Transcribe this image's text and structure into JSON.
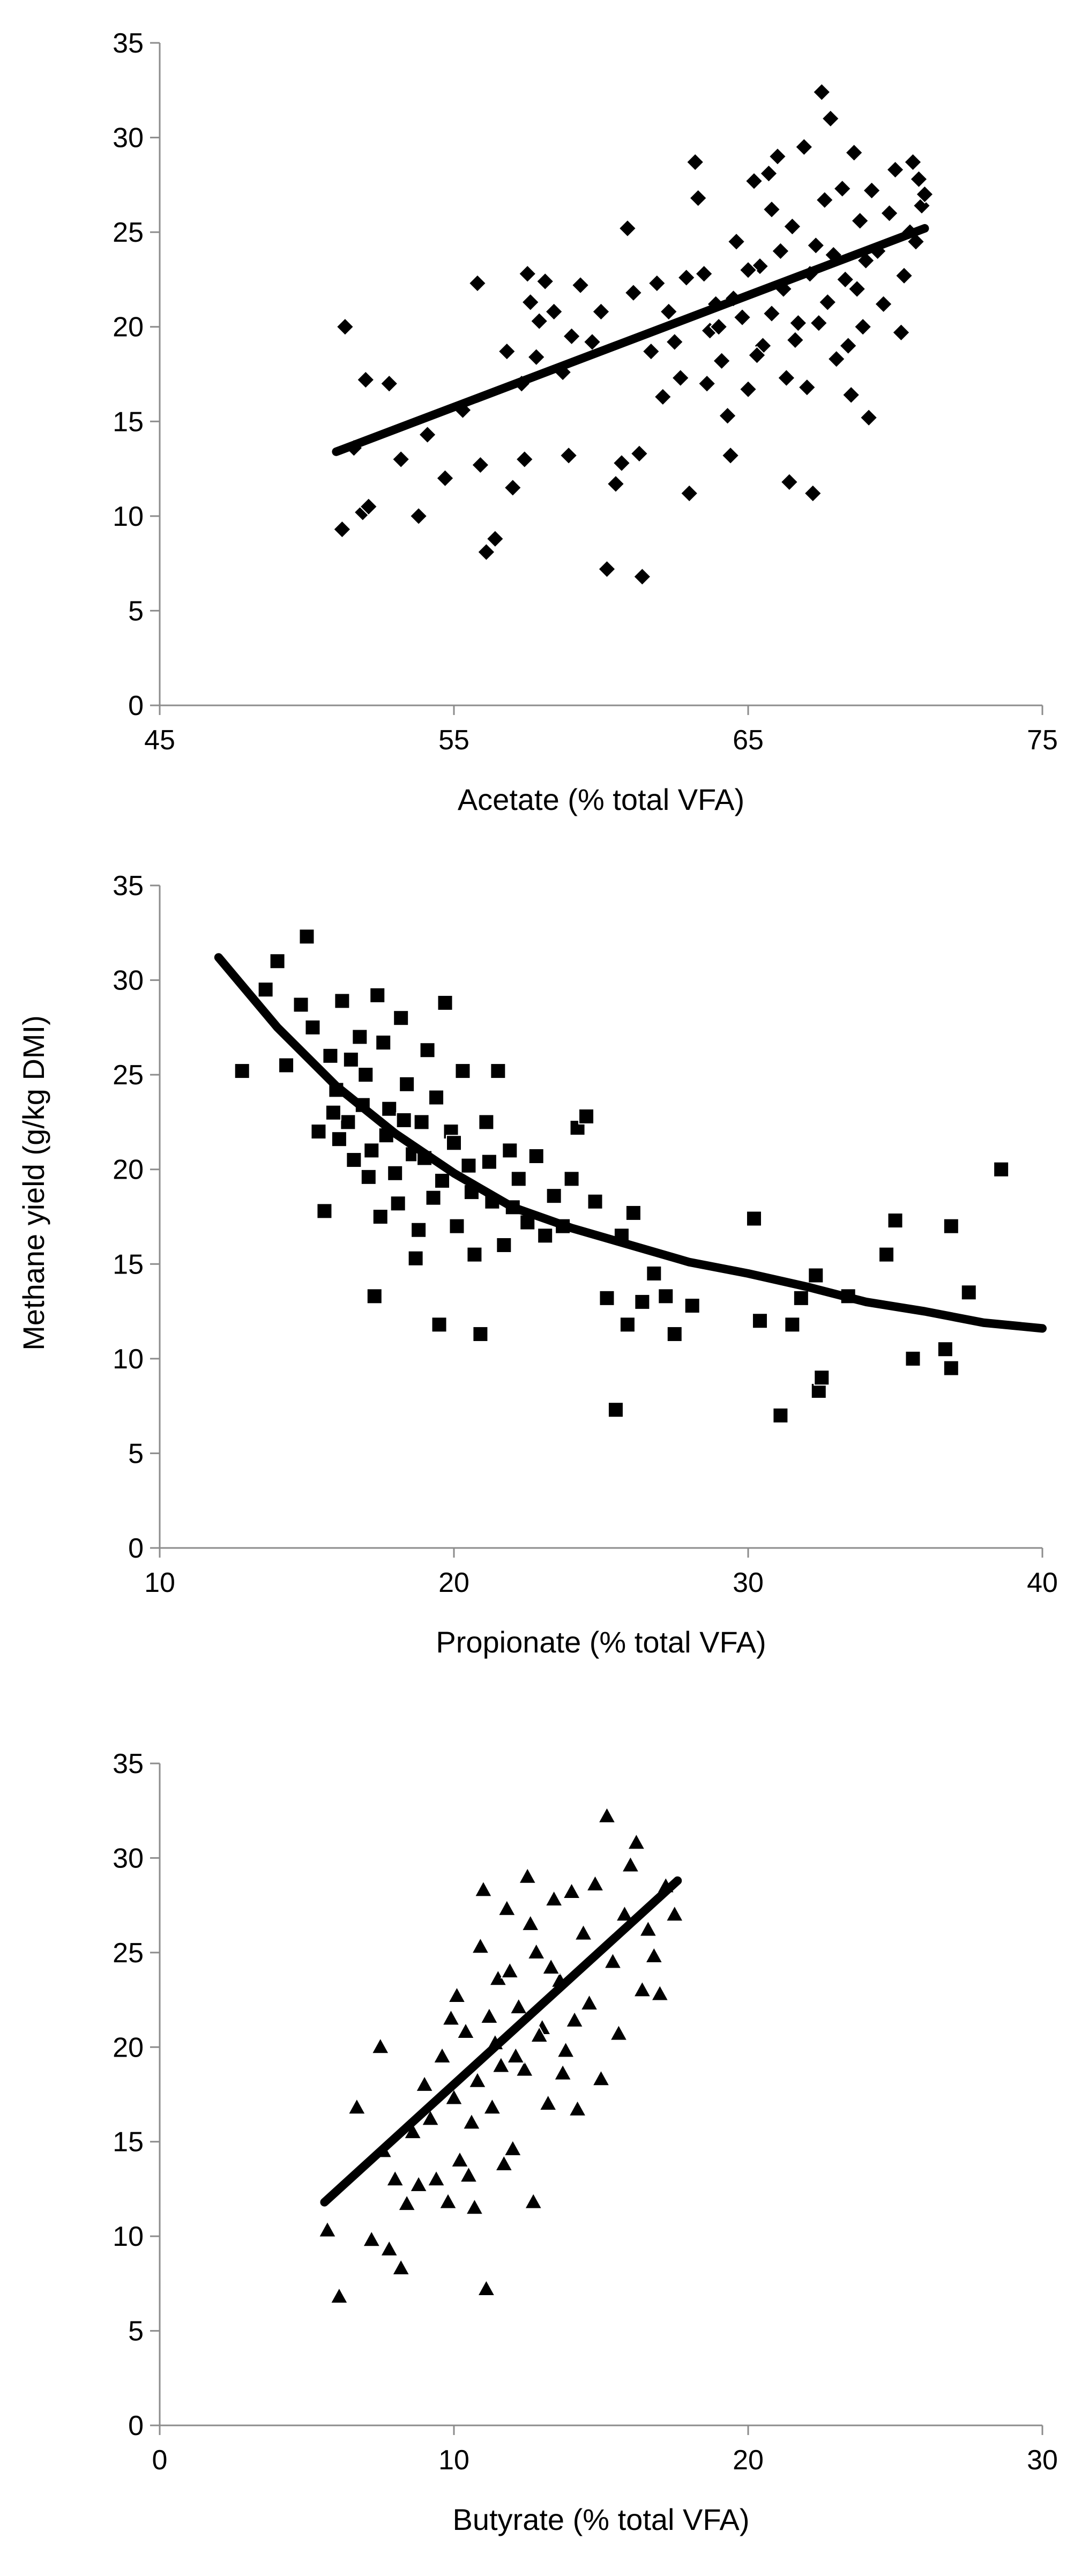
{
  "figure_ylabel": "Methane yield (g/kg DMI)",
  "chart_data": [
    {
      "type": "scatter",
      "id": "acetate",
      "marker": "diamond",
      "xlabel": "Acetate (% total VFA)",
      "ylabel": "Methane yield (g/kg DMI)",
      "xlim": [
        45,
        75
      ],
      "ylim": [
        0,
        35
      ],
      "xticks": [
        45,
        55,
        65,
        75
      ],
      "yticks": [
        0,
        5,
        10,
        15,
        20,
        25,
        30,
        35
      ],
      "grid": false,
      "points": [
        [
          51.3,
          20.0
        ],
        [
          51.2,
          9.3
        ],
        [
          51.6,
          13.6
        ],
        [
          51.9,
          10.2
        ],
        [
          52.1,
          10.5
        ],
        [
          52.0,
          17.2
        ],
        [
          52.8,
          17.0
        ],
        [
          53.2,
          13.0
        ],
        [
          53.8,
          10.0
        ],
        [
          54.1,
          14.3
        ],
        [
          54.7,
          12.0
        ],
        [
          55.3,
          15.6
        ],
        [
          55.8,
          22.3
        ],
        [
          55.9,
          12.7
        ],
        [
          56.1,
          8.1
        ],
        [
          56.4,
          8.8
        ],
        [
          56.8,
          18.7
        ],
        [
          57.0,
          11.5
        ],
        [
          57.3,
          17.0
        ],
        [
          57.4,
          13.0
        ],
        [
          57.5,
          22.8
        ],
        [
          57.6,
          21.3
        ],
        [
          57.8,
          18.4
        ],
        [
          58.1,
          22.4
        ],
        [
          58.4,
          20.8
        ],
        [
          58.9,
          13.2
        ],
        [
          59.3,
          22.2
        ],
        [
          59.7,
          19.2
        ],
        [
          60.0,
          20.8
        ],
        [
          60.2,
          7.2
        ],
        [
          60.5,
          11.7
        ],
        [
          60.7,
          12.8
        ],
        [
          60.9,
          25.2
        ],
        [
          61.1,
          21.8
        ],
        [
          61.3,
          13.3
        ],
        [
          61.4,
          6.8
        ],
        [
          61.7,
          18.7
        ],
        [
          62.1,
          16.3
        ],
        [
          62.5,
          19.2
        ],
        [
          62.7,
          17.3
        ],
        [
          62.9,
          22.6
        ],
        [
          63.0,
          11.2
        ],
        [
          63.2,
          28.7
        ],
        [
          63.3,
          26.8
        ],
        [
          63.5,
          22.8
        ],
        [
          63.7,
          19.8
        ],
        [
          63.9,
          21.2
        ],
        [
          64.1,
          18.2
        ],
        [
          64.3,
          15.3
        ],
        [
          64.4,
          13.2
        ],
        [
          64.6,
          24.5
        ],
        [
          64.8,
          20.5
        ],
        [
          65.0,
          16.7
        ],
        [
          65.2,
          27.7
        ],
        [
          65.4,
          23.2
        ],
        [
          65.5,
          19.0
        ],
        [
          65.7,
          28.1
        ],
        [
          65.8,
          26.2
        ],
        [
          66.0,
          29.0
        ],
        [
          66.2,
          22.0
        ],
        [
          66.3,
          17.3
        ],
        [
          66.4,
          11.8
        ],
        [
          66.5,
          25.3
        ],
        [
          66.7,
          20.2
        ],
        [
          66.9,
          29.5
        ],
        [
          67.0,
          16.8
        ],
        [
          67.2,
          11.2
        ],
        [
          67.3,
          24.3
        ],
        [
          67.5,
          32.4
        ],
        [
          67.6,
          26.7
        ],
        [
          67.7,
          21.3
        ],
        [
          67.8,
          31.0
        ],
        [
          68.0,
          18.3
        ],
        [
          68.2,
          27.3
        ],
        [
          68.3,
          22.5
        ],
        [
          68.5,
          16.4
        ],
        [
          68.6,
          29.2
        ],
        [
          68.8,
          25.6
        ],
        [
          68.9,
          20.0
        ],
        [
          69.0,
          23.5
        ],
        [
          69.1,
          15.2
        ],
        [
          69.2,
          27.2
        ],
        [
          69.4,
          24.0
        ],
        [
          69.6,
          21.2
        ],
        [
          69.8,
          26.0
        ],
        [
          70.0,
          28.3
        ],
        [
          70.2,
          19.7
        ],
        [
          70.3,
          22.7
        ],
        [
          70.5,
          25.0
        ],
        [
          70.6,
          28.7
        ],
        [
          70.7,
          24.5
        ],
        [
          70.8,
          27.8
        ],
        [
          70.9,
          26.4
        ],
        [
          71.0,
          27.0
        ],
        [
          64.0,
          20.0
        ],
        [
          64.5,
          21.5
        ],
        [
          65.0,
          23.0
        ],
        [
          65.3,
          18.5
        ],
        [
          65.8,
          20.7
        ],
        [
          66.1,
          24.0
        ],
        [
          66.6,
          19.3
        ],
        [
          67.1,
          22.8
        ],
        [
          67.4,
          20.2
        ],
        [
          67.9,
          23.8
        ],
        [
          68.4,
          19.0
        ],
        [
          68.7,
          22.0
        ],
        [
          63.6,
          17.0
        ],
        [
          62.3,
          20.8
        ],
        [
          61.9,
          22.3
        ],
        [
          59.0,
          19.5
        ],
        [
          58.7,
          17.6
        ],
        [
          57.9,
          20.3
        ]
      ],
      "fit": {
        "points": [
          [
            51.0,
            13.4
          ],
          [
            71.0,
            25.2
          ]
        ]
      }
    },
    {
      "type": "scatter",
      "id": "propionate",
      "marker": "square",
      "xlabel": "Propionate  (% total VFA)",
      "ylabel": "Methane yield (g/kg DMI)",
      "xlim": [
        10,
        40
      ],
      "ylim": [
        0,
        35
      ],
      "xticks": [
        10,
        20,
        30,
        40
      ],
      "yticks": [
        0,
        5,
        10,
        15,
        20,
        25,
        30,
        35
      ],
      "grid": false,
      "points": [
        [
          12.8,
          25.2
        ],
        [
          13.6,
          29.5
        ],
        [
          14.0,
          31.0
        ],
        [
          14.3,
          25.5
        ],
        [
          14.8,
          28.7
        ],
        [
          15.0,
          32.3
        ],
        [
          15.2,
          27.5
        ],
        [
          15.4,
          22.0
        ],
        [
          15.6,
          17.8
        ],
        [
          15.8,
          26.0
        ],
        [
          16.0,
          24.2
        ],
        [
          16.2,
          28.9
        ],
        [
          16.4,
          22.5
        ],
        [
          16.6,
          20.5
        ],
        [
          16.8,
          27.0
        ],
        [
          17.0,
          25.0
        ],
        [
          17.2,
          21.0
        ],
        [
          17.4,
          29.2
        ],
        [
          17.3,
          13.3
        ],
        [
          17.6,
          26.7
        ],
        [
          17.8,
          23.2
        ],
        [
          18.0,
          19.8
        ],
        [
          18.2,
          28.0
        ],
        [
          18.4,
          24.5
        ],
        [
          18.6,
          20.8
        ],
        [
          18.7,
          15.3
        ],
        [
          18.9,
          22.5
        ],
        [
          19.1,
          26.3
        ],
        [
          19.3,
          18.5
        ],
        [
          19.5,
          11.8
        ],
        [
          19.7,
          28.8
        ],
        [
          19.9,
          22.0
        ],
        [
          20.1,
          17.0
        ],
        [
          20.3,
          25.2
        ],
        [
          20.5,
          20.2
        ],
        [
          20.7,
          15.5
        ],
        [
          20.9,
          11.3
        ],
        [
          21.1,
          22.5
        ],
        [
          21.3,
          18.3
        ],
        [
          21.5,
          25.2
        ],
        [
          21.7,
          16.0
        ],
        [
          21.9,
          21.0
        ],
        [
          22.2,
          19.5
        ],
        [
          22.5,
          17.2
        ],
        [
          22.8,
          20.7
        ],
        [
          23.1,
          16.5
        ],
        [
          23.4,
          18.6
        ],
        [
          23.7,
          17.0
        ],
        [
          24.0,
          19.5
        ],
        [
          24.2,
          22.2
        ],
        [
          24.5,
          22.8
        ],
        [
          24.8,
          18.3
        ],
        [
          25.2,
          13.2
        ],
        [
          25.5,
          7.3
        ],
        [
          25.7,
          16.5
        ],
        [
          25.9,
          11.8
        ],
        [
          26.1,
          17.7
        ],
        [
          26.4,
          13.0
        ],
        [
          26.8,
          14.5
        ],
        [
          27.2,
          13.3
        ],
        [
          27.5,
          11.3
        ],
        [
          28.1,
          12.8
        ],
        [
          30.2,
          17.4
        ],
        [
          30.4,
          12.0
        ],
        [
          31.1,
          7.0
        ],
        [
          31.5,
          11.8
        ],
        [
          31.8,
          13.2
        ],
        [
          32.3,
          14.4
        ],
        [
          32.4,
          8.3
        ],
        [
          32.5,
          9.0
        ],
        [
          33.4,
          13.3
        ],
        [
          34.7,
          15.5
        ],
        [
          35.0,
          17.3
        ],
        [
          35.6,
          10.0
        ],
        [
          36.7,
          10.5
        ],
        [
          36.9,
          17.0
        ],
        [
          36.9,
          9.5
        ],
        [
          37.5,
          13.5
        ],
        [
          38.6,
          20.0
        ],
        [
          16.1,
          21.6
        ],
        [
          16.9,
          23.4
        ],
        [
          17.7,
          21.8
        ],
        [
          18.3,
          22.6
        ],
        [
          19.0,
          20.6
        ],
        [
          19.6,
          19.4
        ],
        [
          20.0,
          21.4
        ],
        [
          18.1,
          18.2
        ],
        [
          17.1,
          19.6
        ],
        [
          16.5,
          25.8
        ],
        [
          15.9,
          23.0
        ],
        [
          19.4,
          23.8
        ],
        [
          20.6,
          18.8
        ],
        [
          21.2,
          20.4
        ],
        [
          22.0,
          18.0
        ],
        [
          18.8,
          16.8
        ],
        [
          17.5,
          17.5
        ]
      ],
      "fit": {
        "points": [
          [
            12.0,
            31.2
          ],
          [
            14.0,
            27.5
          ],
          [
            16.0,
            24.4
          ],
          [
            18.0,
            21.9
          ],
          [
            20.0,
            19.8
          ],
          [
            22.0,
            18.0
          ],
          [
            24.0,
            16.9
          ],
          [
            26.0,
            16.0
          ],
          [
            28.0,
            15.1
          ],
          [
            30.0,
            14.5
          ],
          [
            32.0,
            13.8
          ],
          [
            34.0,
            13.0
          ],
          [
            36.0,
            12.5
          ],
          [
            38.0,
            11.9
          ],
          [
            40.0,
            11.6
          ]
        ]
      }
    },
    {
      "type": "scatter",
      "id": "butyrate",
      "marker": "triangle",
      "xlabel": "Butyrate (% total VFA)",
      "ylabel": "Methane yield (g/kg DMI)",
      "xlim": [
        0,
        30
      ],
      "ylim": [
        0,
        35
      ],
      "xticks": [
        0,
        10,
        20,
        30
      ],
      "yticks": [
        0,
        5,
        10,
        15,
        20,
        25,
        30,
        35
      ],
      "grid": false,
      "points": [
        [
          5.7,
          10.3
        ],
        [
          6.1,
          6.8
        ],
        [
          6.7,
          16.8
        ],
        [
          7.2,
          9.8
        ],
        [
          7.5,
          20.0
        ],
        [
          7.6,
          14.5
        ],
        [
          7.8,
          9.3
        ],
        [
          8.0,
          13.0
        ],
        [
          8.2,
          8.3
        ],
        [
          8.4,
          11.7
        ],
        [
          8.6,
          15.5
        ],
        [
          8.8,
          12.7
        ],
        [
          9.0,
          18.0
        ],
        [
          9.2,
          16.2
        ],
        [
          9.4,
          13.0
        ],
        [
          9.6,
          19.5
        ],
        [
          9.8,
          11.8
        ],
        [
          10.0,
          17.3
        ],
        [
          10.1,
          22.7
        ],
        [
          10.2,
          14.0
        ],
        [
          10.4,
          20.8
        ],
        [
          10.5,
          13.2
        ],
        [
          10.7,
          11.5
        ],
        [
          10.8,
          18.2
        ],
        [
          10.9,
          25.3
        ],
        [
          11.0,
          28.3
        ],
        [
          11.1,
          7.2
        ],
        [
          11.2,
          21.6
        ],
        [
          11.3,
          16.8
        ],
        [
          11.5,
          23.6
        ],
        [
          11.6,
          19.0
        ],
        [
          11.8,
          27.3
        ],
        [
          12.0,
          14.6
        ],
        [
          12.2,
          22.1
        ],
        [
          12.4,
          18.8
        ],
        [
          12.5,
          29.0
        ],
        [
          12.7,
          11.8
        ],
        [
          12.8,
          25.0
        ],
        [
          13.0,
          21.0
        ],
        [
          13.2,
          17.0
        ],
        [
          13.4,
          27.8
        ],
        [
          13.6,
          23.5
        ],
        [
          13.8,
          19.8
        ],
        [
          14.0,
          28.2
        ],
        [
          14.2,
          16.7
        ],
        [
          14.4,
          26.0
        ],
        [
          14.6,
          22.3
        ],
        [
          14.8,
          28.6
        ],
        [
          15.0,
          18.3
        ],
        [
          15.2,
          32.2
        ],
        [
          15.4,
          24.5
        ],
        [
          15.6,
          20.7
        ],
        [
          15.8,
          27.0
        ],
        [
          16.0,
          29.6
        ],
        [
          16.2,
          30.8
        ],
        [
          16.4,
          23.0
        ],
        [
          16.6,
          26.2
        ],
        [
          16.8,
          24.8
        ],
        [
          17.0,
          22.8
        ],
        [
          17.2,
          28.5
        ],
        [
          17.5,
          27.0
        ],
        [
          11.4,
          20.2
        ],
        [
          12.1,
          19.5
        ],
        [
          12.9,
          20.6
        ],
        [
          13.3,
          24.2
        ],
        [
          14.1,
          21.4
        ],
        [
          10.6,
          16.0
        ],
        [
          11.7,
          13.8
        ],
        [
          12.6,
          26.5
        ],
        [
          13.7,
          18.6
        ],
        [
          9.9,
          21.5
        ],
        [
          11.9,
          24.0
        ]
      ],
      "fit": {
        "points": [
          [
            5.6,
            11.8
          ],
          [
            17.6,
            28.8
          ]
        ]
      }
    }
  ]
}
